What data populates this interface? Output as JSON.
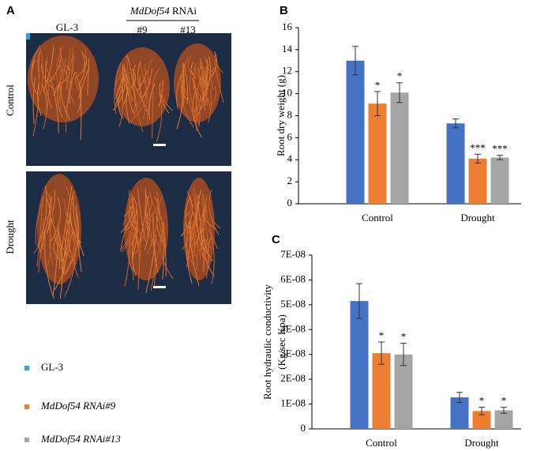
{
  "photo_panel": {
    "panel": "A",
    "columns": [
      "GL-3",
      "#9",
      "#13"
    ],
    "group_gene": "MdDof54",
    "group_suffix": "RNAi",
    "rows": [
      "Control",
      "Drought"
    ]
  },
  "chart_data": [
    {
      "type": "bar",
      "panel": "B",
      "ylabel": [
        "Root dry weight (g)"
      ],
      "categories": [
        "Control",
        "Drought"
      ],
      "series": [
        {
          "name": "GL-3",
          "color": "#4472c4",
          "values": [
            13.0,
            7.3
          ],
          "errors": [
            1.3,
            0.4
          ]
        },
        {
          "name": "MdDof54 RNAi#9",
          "color": "#ed7d31",
          "values": [
            9.1,
            4.1
          ],
          "errors": [
            1.1,
            0.4
          ],
          "significance": [
            "*",
            "***"
          ]
        },
        {
          "name": "MdDof54 RNAi#13",
          "color": "#a5a5a5",
          "values": [
            10.1,
            4.2
          ],
          "errors": [
            0.9,
            0.2
          ],
          "significance": [
            "*",
            "***"
          ]
        }
      ],
      "ylim": [
        0,
        16
      ],
      "yticks": [
        0,
        2,
        4,
        6,
        8,
        10,
        12,
        14,
        16
      ]
    },
    {
      "type": "bar",
      "panel": "C",
      "ylabel": [
        "Root hydraulic conductivity",
        "(Kg/sec Kpa)"
      ],
      "categories": [
        "Control",
        "Drought"
      ],
      "series": [
        {
          "name": "GL-3",
          "color": "#4472c4",
          "values": [
            5.15e-08,
            1.27e-08
          ],
          "errors": [
            7e-09,
            2e-09
          ]
        },
        {
          "name": "MdDof54 RNAi#9",
          "color": "#ed7d31",
          "values": [
            3.05e-08,
            7.2e-09
          ],
          "errors": [
            4.5e-09,
            1.5e-09
          ],
          "significance": [
            "*",
            "*"
          ]
        },
        {
          "name": "MdDof54 RNAi#13",
          "color": "#a5a5a5",
          "values": [
            3e-08,
            7.5e-09
          ],
          "errors": [
            4.5e-09,
            1.2e-09
          ],
          "significance": [
            "*",
            "*"
          ]
        }
      ],
      "ylim": [
        0,
        7e-08
      ],
      "yticks": [
        0,
        {
          "value": 1e-08,
          "label": "1E-08"
        },
        {
          "value": 2e-08,
          "label": "2E-08"
        },
        {
          "value": 3e-08,
          "label": "3E-08"
        },
        {
          "value": 4e-08,
          "label": "4E-08"
        },
        {
          "value": 5e-08,
          "label": "5E-08"
        },
        {
          "value": 6e-08,
          "label": "6E-08"
        },
        {
          "value": 7e-08,
          "label": "7E-08"
        }
      ]
    }
  ]
}
